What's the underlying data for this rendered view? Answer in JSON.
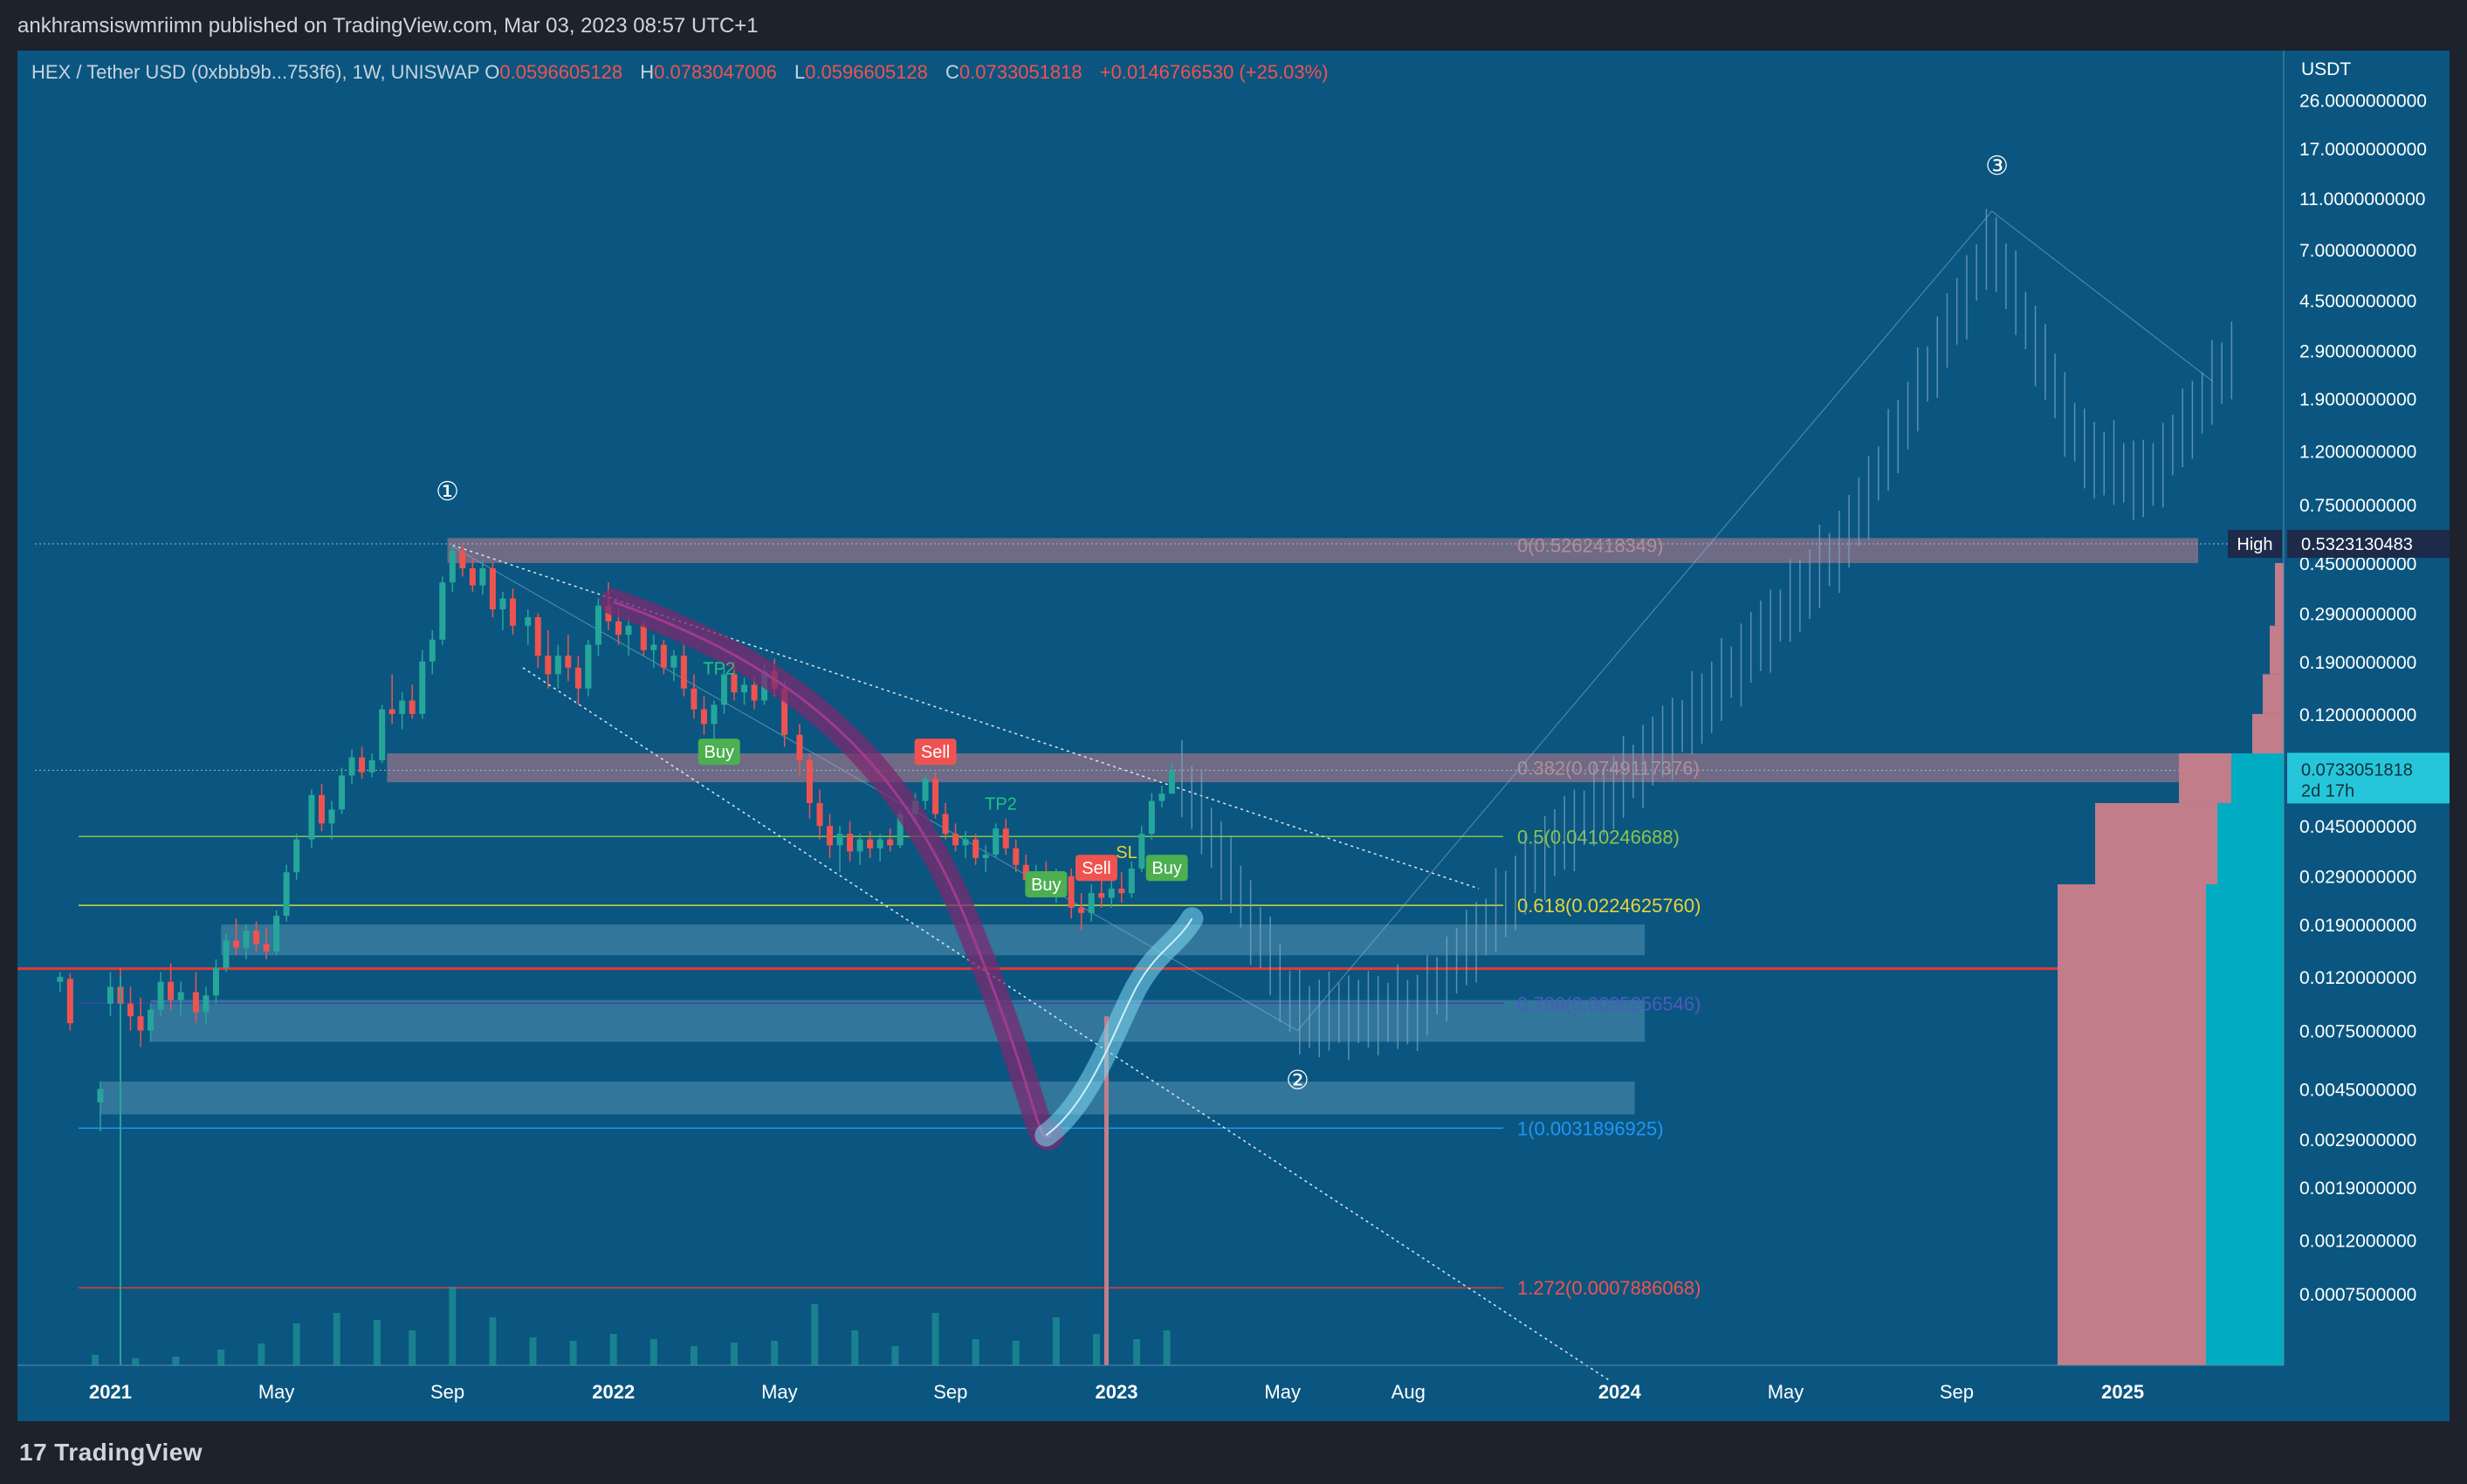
{
  "header": {
    "published_by": "ankhramsiswmriimn published on TradingView.com, Mar 03, 2023 08:57 UTC+1"
  },
  "legend": {
    "symbol": "HEX / Tether USD (0xbbb9b...753f6), 1W, UNISWAP",
    "open_label": "O",
    "open": "0.0596605128",
    "high_label": "H",
    "high": "0.0783047006",
    "low_label": "L",
    "low": "0.0596605128",
    "close_label": "C",
    "close": "0.0733051818",
    "change": "+0.0146766530 (+25.03%)"
  },
  "footer": {
    "brand": "TradingView",
    "brand_mark": "17"
  },
  "colors": {
    "background": "#0a5680",
    "bull": "#26a69a",
    "bear": "#ef5350",
    "support_line": "#e53935",
    "fib_05": "#8bc34a",
    "fib_0618": "#cddc39",
    "fib_0786": "#3949ab",
    "fib_1": "#2196f3",
    "fib_1272": "#e53935",
    "profile_pink": "#c27d8a",
    "profile_cyan": "#00bcd4"
  },
  "chart_data": {
    "type": "candlestick",
    "title": "HEX / Tether USD (0xbbb9b...753f6), 1W, UNISWAP",
    "y_axis": {
      "unit": "USDT",
      "scale": "log",
      "ticks": [
        "26.0000000000",
        "17.0000000000",
        "11.0000000000",
        "7.0000000000",
        "4.5000000000",
        "2.9000000000",
        "1.9000000000",
        "1.2000000000",
        "0.7500000000",
        "0.4500000000",
        "0.2900000000",
        "0.1900000000",
        "0.1200000000",
        "0.0450000000",
        "0.0290000000",
        "0.0190000000",
        "0.0120000000",
        "0.0075000000",
        "0.0045000000",
        "0.0029000000",
        "0.0019000000",
        "0.0012000000",
        "0.0007500000"
      ],
      "range": [
        0.0004,
        40
      ]
    },
    "x_axis": {
      "ticks": [
        {
          "label": "2021",
          "t": 2021.0
        },
        {
          "label": "May",
          "t": 2021.33
        },
        {
          "label": "Sep",
          "t": 2021.67
        },
        {
          "label": "2022",
          "t": 2022.0
        },
        {
          "label": "May",
          "t": 2022.33
        },
        {
          "label": "Sep",
          "t": 2022.67
        },
        {
          "label": "2023",
          "t": 2023.0
        },
        {
          "label": "May",
          "t": 2023.33
        },
        {
          "label": "Aug",
          "t": 2023.58
        },
        {
          "label": "2024",
          "t": 2024.0
        },
        {
          "label": "May",
          "t": 2024.33
        },
        {
          "label": "Sep",
          "t": 2024.67
        },
        {
          "label": "2025",
          "t": 2025.0
        }
      ]
    },
    "price_markers": [
      {
        "label": "High",
        "value": "0.5323130483"
      },
      {
        "label": "",
        "value": "0.0733051818",
        "sub": "2d 17h"
      }
    ],
    "fib_levels": [
      {
        "label": "0(0.5262418349)",
        "value": 0.5262418349
      },
      {
        "label": "0.382(0.0749117376)",
        "value": 0.0749117376
      },
      {
        "label": "0.5(0.0410246688)",
        "value": 0.0410246688
      },
      {
        "label": "0.618(0.0224625760)",
        "value": 0.022462576
      },
      {
        "label": "0.786(0.0095256546)",
        "value": 0.0095256546
      },
      {
        "label": "1(0.0031896925)",
        "value": 0.0031896925
      },
      {
        "label": "1.272(0.0007886068)",
        "value": 0.0007886068
      }
    ],
    "wave_labels": [
      {
        "label": "①",
        "t": 2021.67,
        "value": 0.78
      },
      {
        "label": "②",
        "t": 2023.36,
        "value": 0.0045
      },
      {
        "label": "③",
        "t": 2024.75,
        "value": 13.5
      }
    ],
    "signals": [
      {
        "label": "TP2",
        "t": 2022.21,
        "value": 0.17
      },
      {
        "label": "Buy",
        "t": 2022.21,
        "value": 0.083
      },
      {
        "label": "Sell",
        "t": 2022.64,
        "value": 0.083
      },
      {
        "label": "TP2",
        "t": 2022.77,
        "value": 0.052
      },
      {
        "label": "Buy",
        "t": 2022.86,
        "value": 0.026
      },
      {
        "label": "Sell",
        "t": 2022.96,
        "value": 0.03
      },
      {
        "label": "SL",
        "t": 2023.02,
        "value": 0.034
      },
      {
        "label": "Buy",
        "t": 2023.1,
        "value": 0.03
      }
    ],
    "candles": [
      {
        "t": 2020.9,
        "o": 0.0115,
        "h": 0.0125,
        "l": 0.0105,
        "c": 0.012
      },
      {
        "t": 2020.92,
        "o": 0.0118,
        "h": 0.0124,
        "l": 0.0075,
        "c": 0.008
      },
      {
        "t": 2020.98,
        "o": 0.004,
        "h": 0.0048,
        "l": 0.0031,
        "c": 0.0045
      },
      {
        "t": 2021.0,
        "o": 0.0095,
        "h": 0.0125,
        "l": 0.0085,
        "c": 0.011
      },
      {
        "t": 2021.02,
        "o": 0.011,
        "h": 0.013,
        "l": 0.009,
        "c": 0.0095
      },
      {
        "t": 2021.04,
        "o": 0.0095,
        "h": 0.011,
        "l": 0.0075,
        "c": 0.0085
      },
      {
        "t": 2021.06,
        "o": 0.0085,
        "h": 0.01,
        "l": 0.0065,
        "c": 0.0075
      },
      {
        "t": 2021.08,
        "o": 0.0075,
        "h": 0.0095,
        "l": 0.0068,
        "c": 0.009
      },
      {
        "t": 2021.1,
        "o": 0.009,
        "h": 0.0125,
        "l": 0.0085,
        "c": 0.0115
      },
      {
        "t": 2021.12,
        "o": 0.0115,
        "h": 0.0135,
        "l": 0.009,
        "c": 0.0098
      },
      {
        "t": 2021.14,
        "o": 0.0098,
        "h": 0.0115,
        "l": 0.0085,
        "c": 0.0105
      },
      {
        "t": 2021.17,
        "o": 0.0105,
        "h": 0.0125,
        "l": 0.008,
        "c": 0.0088
      },
      {
        "t": 2021.19,
        "o": 0.0088,
        "h": 0.011,
        "l": 0.008,
        "c": 0.0102
      },
      {
        "t": 2021.21,
        "o": 0.0102,
        "h": 0.014,
        "l": 0.0095,
        "c": 0.013
      },
      {
        "t": 2021.23,
        "o": 0.013,
        "h": 0.0175,
        "l": 0.0125,
        "c": 0.0165
      },
      {
        "t": 2021.25,
        "o": 0.0165,
        "h": 0.02,
        "l": 0.0145,
        "c": 0.0155
      },
      {
        "t": 2021.27,
        "o": 0.0155,
        "h": 0.019,
        "l": 0.014,
        "c": 0.018
      },
      {
        "t": 2021.29,
        "o": 0.018,
        "h": 0.0195,
        "l": 0.015,
        "c": 0.016
      },
      {
        "t": 2021.31,
        "o": 0.016,
        "h": 0.0185,
        "l": 0.014,
        "c": 0.015
      },
      {
        "t": 2021.33,
        "o": 0.015,
        "h": 0.0215,
        "l": 0.0145,
        "c": 0.0205
      },
      {
        "t": 2021.35,
        "o": 0.0205,
        "h": 0.032,
        "l": 0.0195,
        "c": 0.03
      },
      {
        "t": 2021.37,
        "o": 0.03,
        "h": 0.042,
        "l": 0.028,
        "c": 0.04
      },
      {
        "t": 2021.4,
        "o": 0.04,
        "h": 0.062,
        "l": 0.037,
        "c": 0.059
      },
      {
        "t": 2021.42,
        "o": 0.059,
        "h": 0.065,
        "l": 0.043,
        "c": 0.046
      },
      {
        "t": 2021.44,
        "o": 0.046,
        "h": 0.056,
        "l": 0.04,
        "c": 0.052
      },
      {
        "t": 2021.46,
        "o": 0.052,
        "h": 0.075,
        "l": 0.05,
        "c": 0.07
      },
      {
        "t": 2021.48,
        "o": 0.07,
        "h": 0.088,
        "l": 0.065,
        "c": 0.082
      },
      {
        "t": 2021.5,
        "o": 0.082,
        "h": 0.09,
        "l": 0.068,
        "c": 0.072
      },
      {
        "t": 2021.52,
        "o": 0.072,
        "h": 0.085,
        "l": 0.069,
        "c": 0.08
      },
      {
        "t": 2021.54,
        "o": 0.08,
        "h": 0.13,
        "l": 0.078,
        "c": 0.125
      },
      {
        "t": 2021.56,
        "o": 0.125,
        "h": 0.17,
        "l": 0.11,
        "c": 0.12
      },
      {
        "t": 2021.58,
        "o": 0.12,
        "h": 0.145,
        "l": 0.105,
        "c": 0.135
      },
      {
        "t": 2021.6,
        "o": 0.135,
        "h": 0.155,
        "l": 0.115,
        "c": 0.12
      },
      {
        "t": 2021.62,
        "o": 0.12,
        "h": 0.21,
        "l": 0.115,
        "c": 0.19
      },
      {
        "t": 2021.64,
        "o": 0.19,
        "h": 0.25,
        "l": 0.17,
        "c": 0.23
      },
      {
        "t": 2021.66,
        "o": 0.23,
        "h": 0.4,
        "l": 0.22,
        "c": 0.38
      },
      {
        "t": 2021.68,
        "o": 0.38,
        "h": 0.53,
        "l": 0.35,
        "c": 0.5
      },
      {
        "t": 2021.7,
        "o": 0.5,
        "h": 0.5262,
        "l": 0.4,
        "c": 0.43
      },
      {
        "t": 2021.72,
        "o": 0.43,
        "h": 0.47,
        "l": 0.35,
        "c": 0.37
      },
      {
        "t": 2021.74,
        "o": 0.37,
        "h": 0.46,
        "l": 0.34,
        "c": 0.43
      },
      {
        "t": 2021.76,
        "o": 0.43,
        "h": 0.45,
        "l": 0.28,
        "c": 0.3
      },
      {
        "t": 2021.78,
        "o": 0.3,
        "h": 0.35,
        "l": 0.25,
        "c": 0.33
      },
      {
        "t": 2021.8,
        "o": 0.33,
        "h": 0.36,
        "l": 0.24,
        "c": 0.26
      },
      {
        "t": 2021.83,
        "o": 0.26,
        "h": 0.3,
        "l": 0.22,
        "c": 0.28
      },
      {
        "t": 2021.85,
        "o": 0.28,
        "h": 0.29,
        "l": 0.18,
        "c": 0.2
      },
      {
        "t": 2021.87,
        "o": 0.2,
        "h": 0.25,
        "l": 0.15,
        "c": 0.17
      },
      {
        "t": 2021.89,
        "o": 0.17,
        "h": 0.22,
        "l": 0.15,
        "c": 0.2
      },
      {
        "t": 2021.91,
        "o": 0.2,
        "h": 0.24,
        "l": 0.16,
        "c": 0.18
      },
      {
        "t": 2021.93,
        "o": 0.18,
        "h": 0.2,
        "l": 0.13,
        "c": 0.15
      },
      {
        "t": 2021.95,
        "o": 0.15,
        "h": 0.23,
        "l": 0.14,
        "c": 0.22
      },
      {
        "t": 2021.97,
        "o": 0.22,
        "h": 0.33,
        "l": 0.2,
        "c": 0.31
      },
      {
        "t": 2021.99,
        "o": 0.31,
        "h": 0.38,
        "l": 0.25,
        "c": 0.27
      },
      {
        "t": 2022.01,
        "o": 0.27,
        "h": 0.3,
        "l": 0.22,
        "c": 0.24
      },
      {
        "t": 2022.03,
        "o": 0.24,
        "h": 0.28,
        "l": 0.2,
        "c": 0.26
      },
      {
        "t": 2022.06,
        "o": 0.26,
        "h": 0.27,
        "l": 0.2,
        "c": 0.21
      },
      {
        "t": 2022.08,
        "o": 0.21,
        "h": 0.24,
        "l": 0.18,
        "c": 0.22
      },
      {
        "t": 2022.1,
        "o": 0.22,
        "h": 0.23,
        "l": 0.17,
        "c": 0.18
      },
      {
        "t": 2022.12,
        "o": 0.18,
        "h": 0.21,
        "l": 0.16,
        "c": 0.2
      },
      {
        "t": 2022.14,
        "o": 0.2,
        "h": 0.22,
        "l": 0.14,
        "c": 0.15
      },
      {
        "t": 2022.16,
        "o": 0.15,
        "h": 0.17,
        "l": 0.115,
        "c": 0.125
      },
      {
        "t": 2022.18,
        "o": 0.125,
        "h": 0.14,
        "l": 0.1,
        "c": 0.11
      },
      {
        "t": 2022.2,
        "o": 0.11,
        "h": 0.135,
        "l": 0.095,
        "c": 0.13
      },
      {
        "t": 2022.22,
        "o": 0.13,
        "h": 0.18,
        "l": 0.12,
        "c": 0.17
      },
      {
        "t": 2022.24,
        "o": 0.17,
        "h": 0.19,
        "l": 0.135,
        "c": 0.145
      },
      {
        "t": 2022.26,
        "o": 0.145,
        "h": 0.165,
        "l": 0.13,
        "c": 0.155
      },
      {
        "t": 2022.28,
        "o": 0.155,
        "h": 0.165,
        "l": 0.125,
        "c": 0.135
      },
      {
        "t": 2022.3,
        "o": 0.135,
        "h": 0.185,
        "l": 0.13,
        "c": 0.175
      },
      {
        "t": 2022.32,
        "o": 0.175,
        "h": 0.195,
        "l": 0.14,
        "c": 0.15
      },
      {
        "t": 2022.34,
        "o": 0.15,
        "h": 0.16,
        "l": 0.09,
        "c": 0.1
      },
      {
        "t": 2022.37,
        "o": 0.1,
        "h": 0.11,
        "l": 0.07,
        "c": 0.08
      },
      {
        "t": 2022.39,
        "o": 0.08,
        "h": 0.085,
        "l": 0.048,
        "c": 0.055
      },
      {
        "t": 2022.41,
        "o": 0.055,
        "h": 0.062,
        "l": 0.04,
        "c": 0.045
      },
      {
        "t": 2022.43,
        "o": 0.045,
        "h": 0.05,
        "l": 0.034,
        "c": 0.038
      },
      {
        "t": 2022.45,
        "o": 0.038,
        "h": 0.045,
        "l": 0.03,
        "c": 0.042
      },
      {
        "t": 2022.47,
        "o": 0.042,
        "h": 0.047,
        "l": 0.033,
        "c": 0.036
      },
      {
        "t": 2022.49,
        "o": 0.036,
        "h": 0.042,
        "l": 0.032,
        "c": 0.04
      },
      {
        "t": 2022.51,
        "o": 0.04,
        "h": 0.043,
        "l": 0.034,
        "c": 0.037
      },
      {
        "t": 2022.53,
        "o": 0.037,
        "h": 0.042,
        "l": 0.033,
        "c": 0.04
      },
      {
        "t": 2022.55,
        "o": 0.04,
        "h": 0.044,
        "l": 0.036,
        "c": 0.038
      },
      {
        "t": 2022.57,
        "o": 0.038,
        "h": 0.052,
        "l": 0.037,
        "c": 0.05
      },
      {
        "t": 2022.6,
        "o": 0.05,
        "h": 0.06,
        "l": 0.047,
        "c": 0.056
      },
      {
        "t": 2022.62,
        "o": 0.056,
        "h": 0.07,
        "l": 0.052,
        "c": 0.068
      },
      {
        "t": 2022.64,
        "o": 0.068,
        "h": 0.072,
        "l": 0.048,
        "c": 0.05
      },
      {
        "t": 2022.66,
        "o": 0.05,
        "h": 0.055,
        "l": 0.04,
        "c": 0.042
      },
      {
        "t": 2022.68,
        "o": 0.042,
        "h": 0.046,
        "l": 0.036,
        "c": 0.038
      },
      {
        "t": 2022.7,
        "o": 0.038,
        "h": 0.043,
        "l": 0.034,
        "c": 0.04
      },
      {
        "t": 2022.72,
        "o": 0.04,
        "h": 0.042,
        "l": 0.032,
        "c": 0.034
      },
      {
        "t": 2022.74,
        "o": 0.034,
        "h": 0.038,
        "l": 0.03,
        "c": 0.035
      },
      {
        "t": 2022.76,
        "o": 0.035,
        "h": 0.046,
        "l": 0.034,
        "c": 0.044
      },
      {
        "t": 2022.78,
        "o": 0.044,
        "h": 0.048,
        "l": 0.035,
        "c": 0.037
      },
      {
        "t": 2022.8,
        "o": 0.037,
        "h": 0.04,
        "l": 0.03,
        "c": 0.032
      },
      {
        "t": 2022.82,
        "o": 0.032,
        "h": 0.035,
        "l": 0.026,
        "c": 0.028
      },
      {
        "t": 2022.84,
        "o": 0.028,
        "h": 0.032,
        "l": 0.025,
        "c": 0.03
      },
      {
        "t": 2022.86,
        "o": 0.03,
        "h": 0.033,
        "l": 0.024,
        "c": 0.025
      },
      {
        "t": 2022.88,
        "o": 0.025,
        "h": 0.031,
        "l": 0.023,
        "c": 0.029
      },
      {
        "t": 2022.91,
        "o": 0.029,
        "h": 0.031,
        "l": 0.02,
        "c": 0.022
      },
      {
        "t": 2022.93,
        "o": 0.022,
        "h": 0.025,
        "l": 0.018,
        "c": 0.021
      },
      {
        "t": 2022.95,
        "o": 0.021,
        "h": 0.027,
        "l": 0.0195,
        "c": 0.025
      },
      {
        "t": 2022.97,
        "o": 0.025,
        "h": 0.029,
        "l": 0.022,
        "c": 0.024
      },
      {
        "t": 2022.99,
        "o": 0.024,
        "h": 0.028,
        "l": 0.022,
        "c": 0.026
      },
      {
        "t": 2023.01,
        "o": 0.026,
        "h": 0.03,
        "l": 0.023,
        "c": 0.025
      },
      {
        "t": 2023.03,
        "o": 0.025,
        "h": 0.033,
        "l": 0.024,
        "c": 0.031
      },
      {
        "t": 2023.05,
        "o": 0.031,
        "h": 0.045,
        "l": 0.03,
        "c": 0.042
      },
      {
        "t": 2023.07,
        "o": 0.042,
        "h": 0.06,
        "l": 0.04,
        "c": 0.056
      },
      {
        "t": 2023.09,
        "o": 0.056,
        "h": 0.064,
        "l": 0.053,
        "c": 0.0597
      },
      {
        "t": 2023.11,
        "o": 0.0597,
        "h": 0.0783,
        "l": 0.0597,
        "c": 0.0733
      }
    ],
    "projection_note": "faded projected candles 2023.13–2025.2",
    "volume": [
      {
        "t": 2020.97,
        "v": 12
      },
      {
        "t": 2021.05,
        "v": 8
      },
      {
        "t": 2021.13,
        "v": 10
      },
      {
        "t": 2021.22,
        "v": 18
      },
      {
        "t": 2021.3,
        "v": 25
      },
      {
        "t": 2021.37,
        "v": 48
      },
      {
        "t": 2021.45,
        "v": 60
      },
      {
        "t": 2021.53,
        "v": 52
      },
      {
        "t": 2021.6,
        "v": 40
      },
      {
        "t": 2021.68,
        "v": 90
      },
      {
        "t": 2021.76,
        "v": 55
      },
      {
        "t": 2021.84,
        "v": 32
      },
      {
        "t": 2021.92,
        "v": 28
      },
      {
        "t": 2022.0,
        "v": 36
      },
      {
        "t": 2022.08,
        "v": 30
      },
      {
        "t": 2022.16,
        "v": 22
      },
      {
        "t": 2022.24,
        "v": 26
      },
      {
        "t": 2022.32,
        "v": 28
      },
      {
        "t": 2022.4,
        "v": 70
      },
      {
        "t": 2022.48,
        "v": 40
      },
      {
        "t": 2022.56,
        "v": 22
      },
      {
        "t": 2022.64,
        "v": 60
      },
      {
        "t": 2022.72,
        "v": 30
      },
      {
        "t": 2022.8,
        "v": 28
      },
      {
        "t": 2022.88,
        "v": 55
      },
      {
        "t": 2022.96,
        "v": 36
      },
      {
        "t": 2023.04,
        "v": 30
      },
      {
        "t": 2023.1,
        "v": 40
      }
    ]
  }
}
